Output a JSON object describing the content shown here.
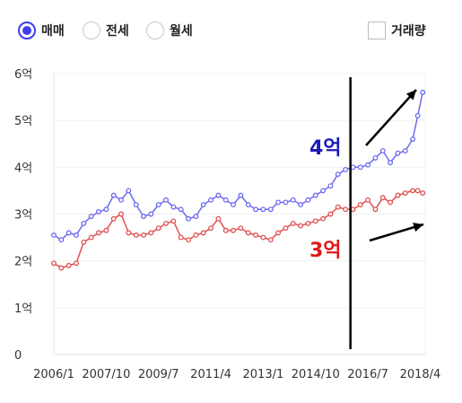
{
  "controls": {
    "radios": [
      {
        "label": "매매",
        "selected": true
      },
      {
        "label": "전세",
        "selected": false
      },
      {
        "label": "월세",
        "selected": false
      }
    ],
    "volume_checkbox": {
      "label": "거래량",
      "checked": false
    }
  },
  "colors": {
    "accent": "#3d3df0",
    "sale_series": "#6a6af0",
    "jeonse_series": "#e05050",
    "annotation_sale": "#1a1ab8",
    "annotation_jeonse": "#e01818"
  },
  "chart_data": {
    "type": "line",
    "title": "",
    "xlabel": "",
    "ylabel": "",
    "y_unit": "억",
    "x_range": [
      "2006/1",
      "2018/6"
    ],
    "ylim": [
      0,
      6
    ],
    "y_ticks": [
      {
        "value": 0,
        "label": "0"
      },
      {
        "value": 1,
        "label": "1억"
      },
      {
        "value": 2,
        "label": "2억"
      },
      {
        "value": 3,
        "label": "3억"
      },
      {
        "value": 4,
        "label": "4억"
      },
      {
        "value": 5,
        "label": "5억"
      },
      {
        "value": 6,
        "label": "6억"
      }
    ],
    "x_ticks": [
      "2006/1",
      "2007/10",
      "2009/7",
      "2011/4",
      "2013/1",
      "2014/10",
      "2016/7",
      "2018/4"
    ],
    "grid": true,
    "series": [
      {
        "key": "sale",
        "x": [
          "2006/1",
          "2006/4",
          "2006/7",
          "2006/10",
          "2007/1",
          "2007/4",
          "2007/7",
          "2007/10",
          "2008/1",
          "2008/4",
          "2008/7",
          "2008/10",
          "2009/1",
          "2009/4",
          "2009/7",
          "2009/10",
          "2010/1",
          "2010/4",
          "2010/7",
          "2010/10",
          "2011/1",
          "2011/4",
          "2011/7",
          "2011/10",
          "2012/1",
          "2012/4",
          "2012/7",
          "2012/10",
          "2013/1",
          "2013/4",
          "2013/7",
          "2013/10",
          "2014/1",
          "2014/4",
          "2014/7",
          "2014/10",
          "2015/1",
          "2015/4",
          "2015/7",
          "2015/10",
          "2016/1",
          "2016/4",
          "2016/7",
          "2016/10",
          "2017/1",
          "2017/4",
          "2017/7",
          "2017/10",
          "2018/1",
          "2018/3",
          "2018/5"
        ],
        "values": [
          2.55,
          2.45,
          2.6,
          2.55,
          2.8,
          2.95,
          3.05,
          3.1,
          3.4,
          3.3,
          3.5,
          3.2,
          2.95,
          3.0,
          3.2,
          3.3,
          3.15,
          3.1,
          2.9,
          2.95,
          3.2,
          3.3,
          3.4,
          3.3,
          3.2,
          3.4,
          3.2,
          3.1,
          3.1,
          3.1,
          3.25,
          3.25,
          3.3,
          3.2,
          3.3,
          3.4,
          3.5,
          3.6,
          3.85,
          3.95,
          4.0,
          4.0,
          4.05,
          4.2,
          4.35,
          4.1,
          4.3,
          4.35,
          4.6,
          5.1,
          5.6
        ]
      },
      {
        "key": "jeonse",
        "x": [
          "2006/1",
          "2006/4",
          "2006/7",
          "2006/10",
          "2007/1",
          "2007/4",
          "2007/7",
          "2007/10",
          "2008/1",
          "2008/4",
          "2008/7",
          "2008/10",
          "2009/1",
          "2009/4",
          "2009/7",
          "2009/10",
          "2010/1",
          "2010/4",
          "2010/7",
          "2010/10",
          "2011/1",
          "2011/4",
          "2011/7",
          "2011/10",
          "2012/1",
          "2012/4",
          "2012/7",
          "2012/10",
          "2013/1",
          "2013/4",
          "2013/7",
          "2013/10",
          "2014/1",
          "2014/4",
          "2014/7",
          "2014/10",
          "2015/1",
          "2015/4",
          "2015/7",
          "2015/10",
          "2016/1",
          "2016/4",
          "2016/7",
          "2016/10",
          "2017/1",
          "2017/4",
          "2017/7",
          "2017/10",
          "2018/1",
          "2018/3",
          "2018/5"
        ],
        "values": [
          1.95,
          1.85,
          1.9,
          1.95,
          2.4,
          2.5,
          2.6,
          2.65,
          2.9,
          3.0,
          2.6,
          2.55,
          2.55,
          2.6,
          2.7,
          2.8,
          2.85,
          2.5,
          2.45,
          2.55,
          2.6,
          2.7,
          2.9,
          2.65,
          2.65,
          2.7,
          2.6,
          2.55,
          2.5,
          2.45,
          2.6,
          2.7,
          2.8,
          2.75,
          2.8,
          2.85,
          2.9,
          3.0,
          3.15,
          3.1,
          3.1,
          3.2,
          3.3,
          3.1,
          3.35,
          3.25,
          3.4,
          3.45,
          3.5,
          3.5,
          3.45
        ]
      }
    ],
    "marker_line_x": "2015/12",
    "annotations": [
      {
        "key": "sale",
        "text": "4억",
        "color": "#1a1ab8"
      },
      {
        "key": "jeonse",
        "text": "3억",
        "color": "#e01818"
      }
    ]
  }
}
